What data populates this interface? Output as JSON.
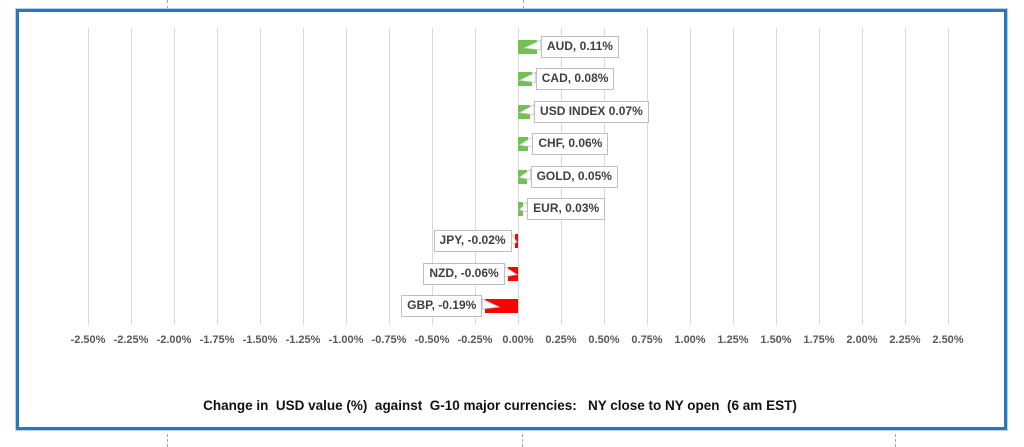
{
  "chart_data": {
    "type": "bar",
    "orientation": "horizontal",
    "title": "Change in  USD value (%)  against  G-10 major currencies:   NY close to NY open  (6 am EST)",
    "categories": [
      "AUD",
      "CAD",
      "USD INDEX",
      "CHF",
      "GOLD",
      "EUR",
      "JPY",
      "NZD",
      "GBP"
    ],
    "values": [
      0.11,
      0.08,
      0.07,
      0.06,
      0.05,
      0.03,
      -0.02,
      -0.06,
      -0.19
    ],
    "value_labels": [
      "AUD, 0.11%",
      "CAD, 0.08%",
      "USD INDEX 0.07%",
      "CHF, 0.06%",
      "GOLD, 0.05%",
      "EUR, 0.03%",
      "JPY, -0.02%",
      "NZD, -0.06%",
      "GBP, -0.19%"
    ],
    "x_ticks": [
      "-2.50%",
      "-2.25%",
      "-2.00%",
      "-1.75%",
      "-1.50%",
      "-1.25%",
      "-1.00%",
      "-0.75%",
      "-0.50%",
      "-0.25%",
      "0.00%",
      "0.25%",
      "0.50%",
      "0.75%",
      "1.00%",
      "1.25%",
      "1.50%",
      "1.75%",
      "2.00%",
      "2.25%",
      "2.50%"
    ],
    "xlim": [
      -2.5,
      2.5
    ],
    "x_tick_step": 0.25,
    "grid": "vertical-only",
    "legend": "none",
    "colors": {
      "positive_bar": "#72c154",
      "negative_bar": "#ff0000",
      "gridline": "#d9d9d9",
      "chart_border": "#2778be",
      "callout_border": "#bfbfbf",
      "callout_text": "#3f3f3f",
      "tick_text": "#595959",
      "title_text": "#111111"
    }
  }
}
